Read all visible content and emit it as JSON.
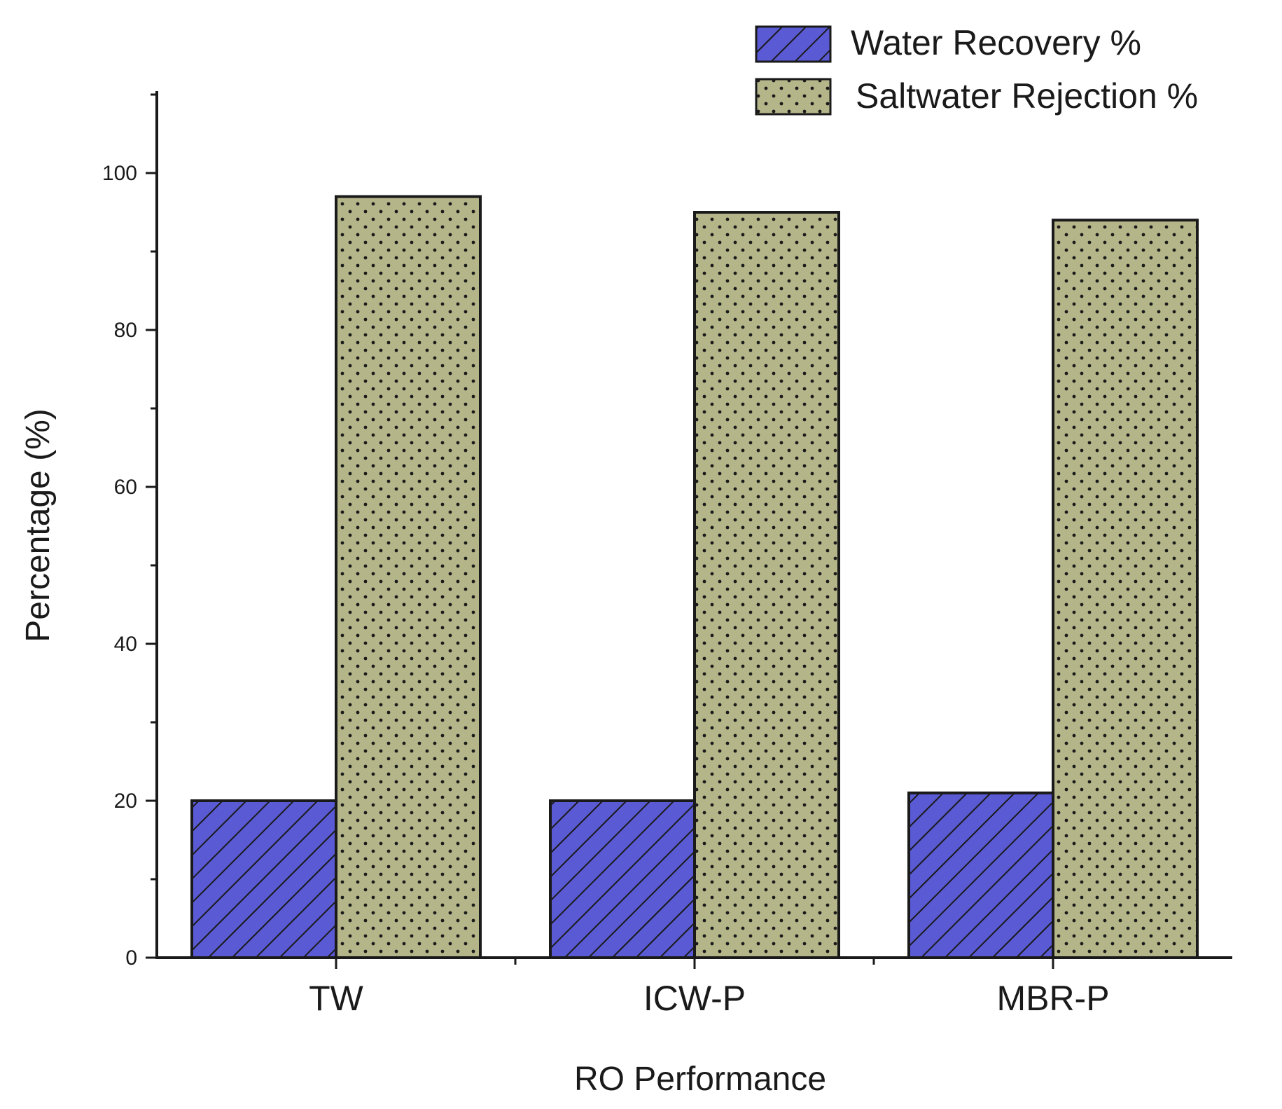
{
  "chart_data": {
    "type": "bar",
    "title": "",
    "xlabel": "RO Performance",
    "ylabel": "Percentage (%)",
    "categories": [
      "TW",
      "ICW-P",
      "MBR-P"
    ],
    "series": [
      {
        "name": "Water Recovery %",
        "values": [
          20,
          20,
          21
        ],
        "color": "#5a5ad4",
        "pattern": "diagonal-hatch"
      },
      {
        "name": "Saltwater Rejection %",
        "values": [
          97,
          95,
          94
        ],
        "color": "#b5b58a",
        "pattern": "dots"
      }
    ],
    "ylim": [
      0,
      110
    ],
    "yticks": [
      0,
      20,
      40,
      60,
      80,
      100
    ],
    "yticks_minor_step": 10,
    "grid": false,
    "legend_position": "top-right"
  }
}
